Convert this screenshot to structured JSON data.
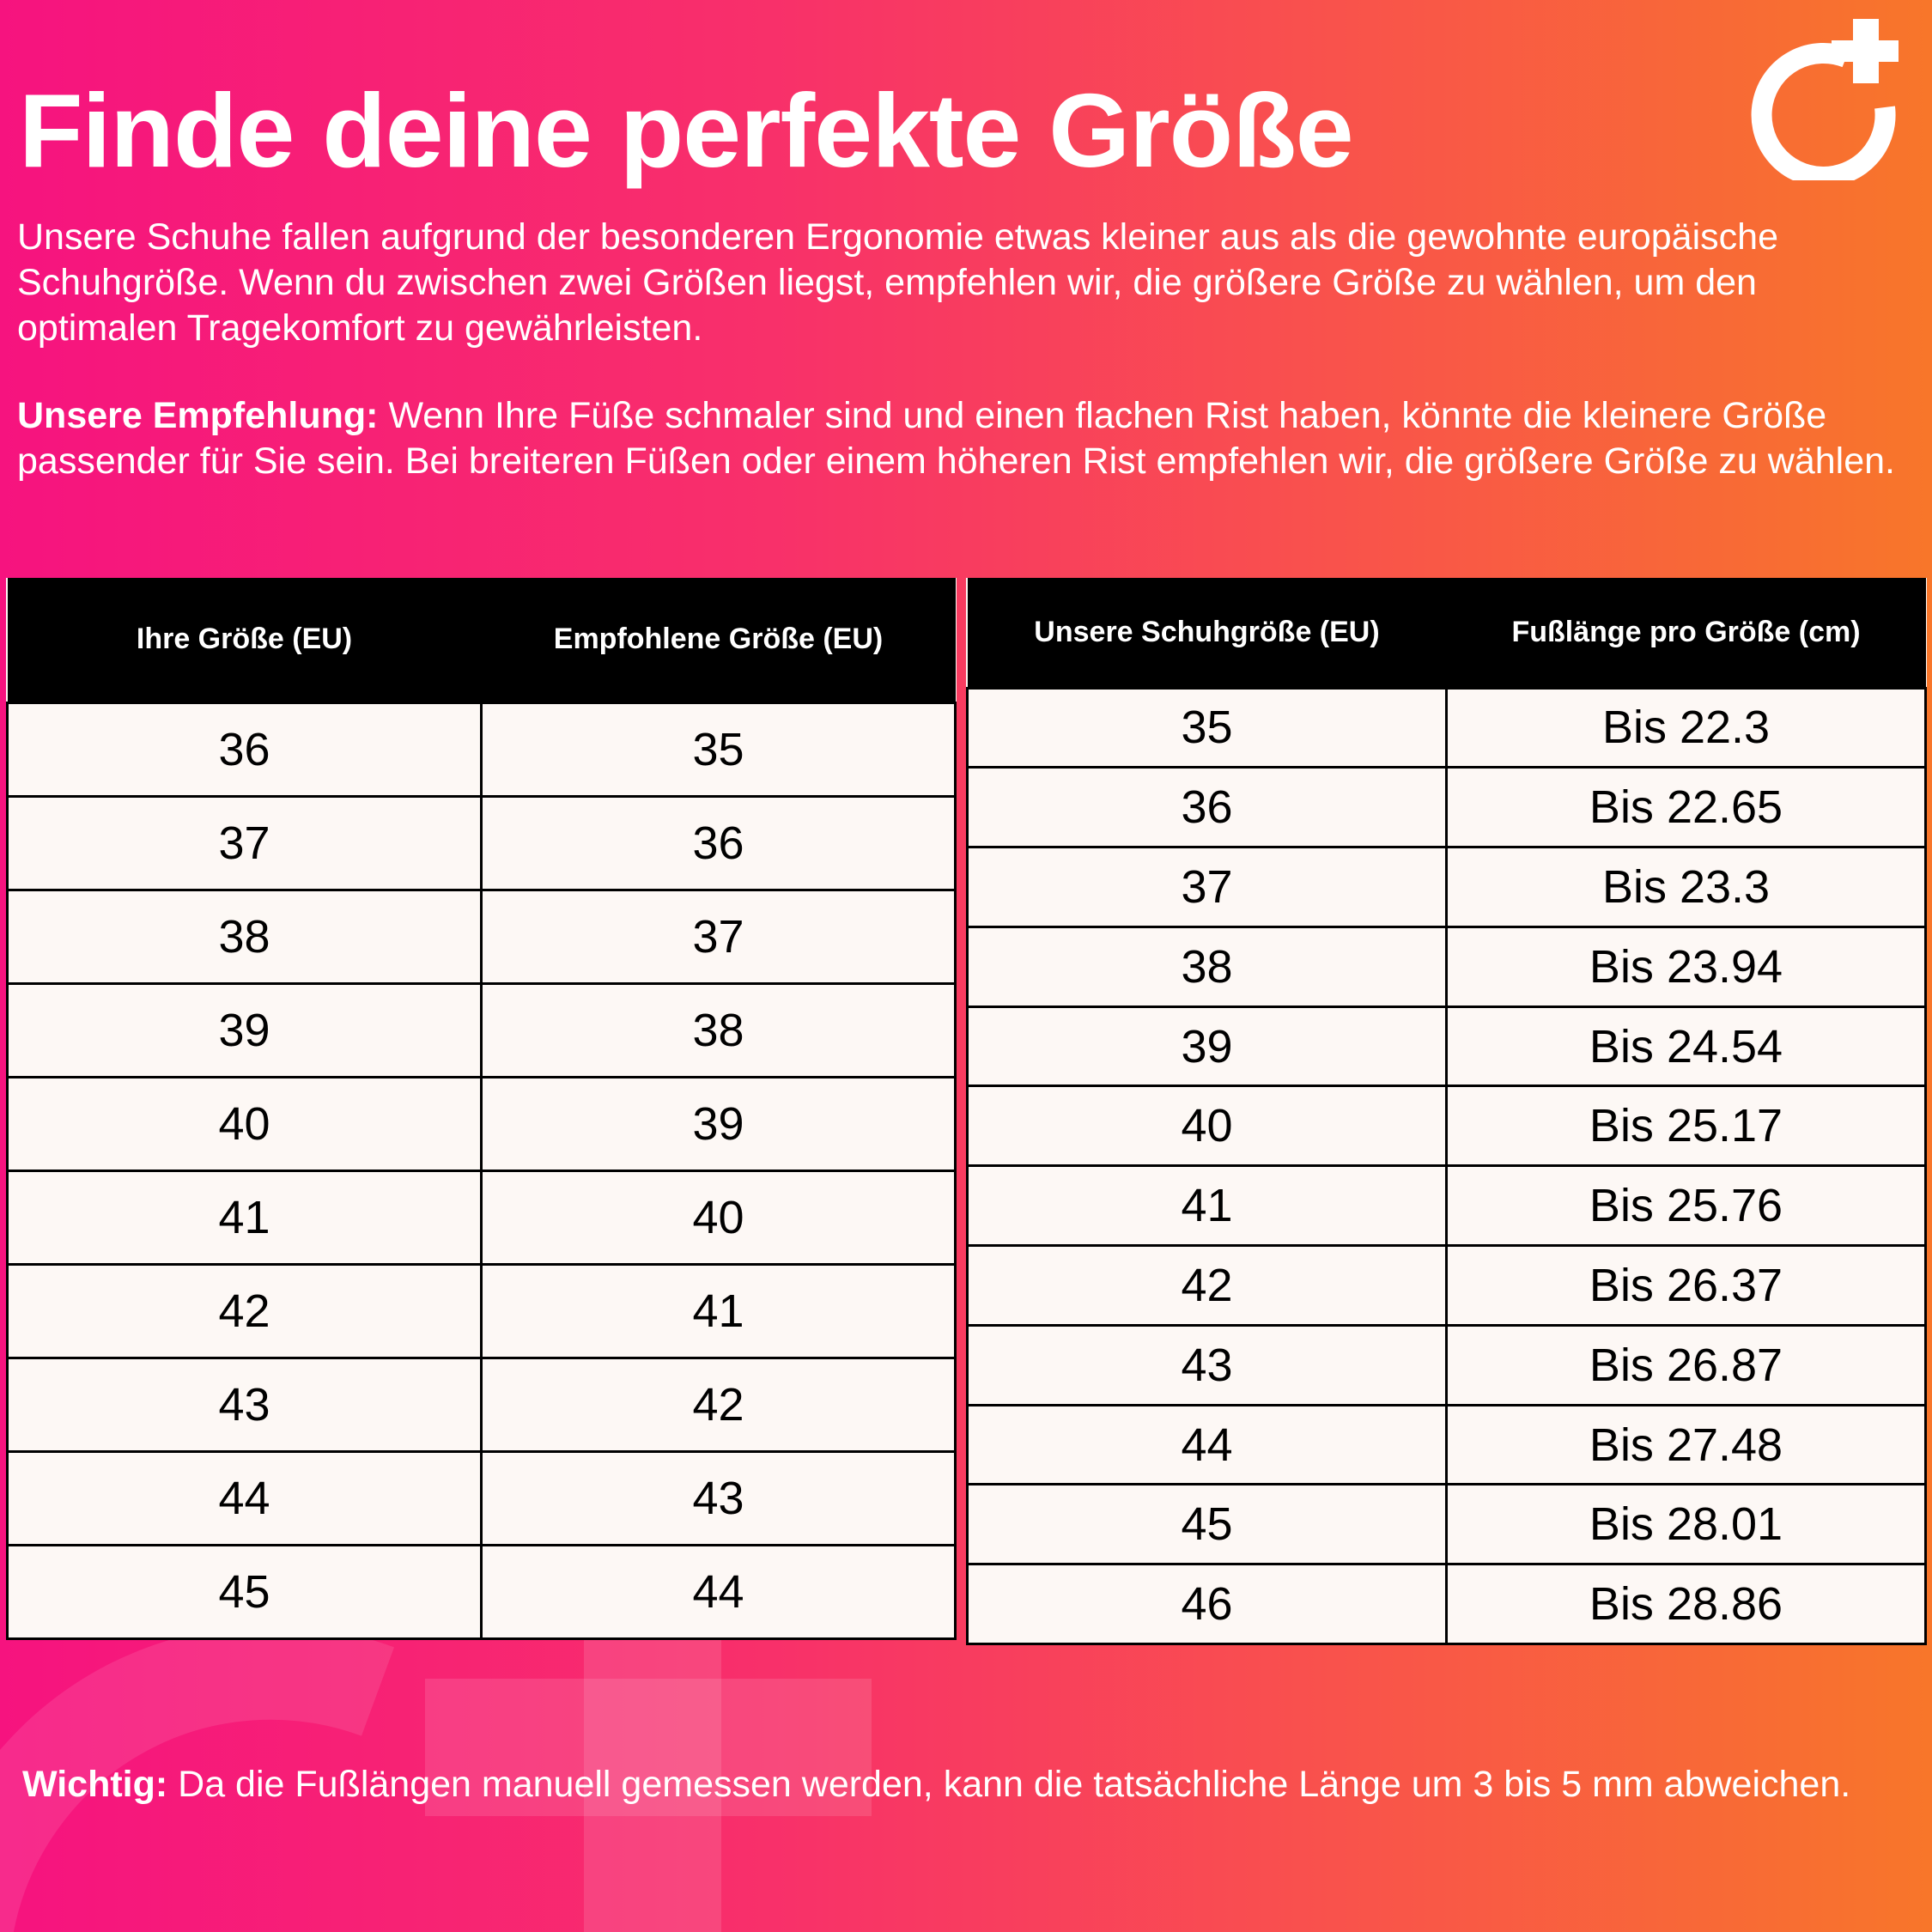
{
  "title": "Finde deine perfekte Größe",
  "intro": "Unsere Schuhe fallen aufgrund der besonderen Ergonomie etwas kleiner aus als die gewohnte europäische Schuhgröße. Wenn du zwischen zwei Größen liegst, empfehlen wir, die größere Größe zu wählen, um den optimalen Tragekomfort zu gewährleisten.",
  "recommendation": {
    "label": "Unsere Empfehlung:",
    "text": " Wenn Ihre Füße schmaler sind und einen flachen Rist haben, könnte die kleinere Größe passender für Sie sein. Bei breiteren Füßen oder einem höheren Rist empfehlen wir, die größere Größe zu wählen."
  },
  "note": {
    "label": "Wichtig:",
    "text": " Da die Fußlängen manuell gemessen werden, kann die tatsächliche Länge um 3 bis 5 mm abweichen."
  },
  "logo_icon": "circle-plus-logo",
  "colors": {
    "gradient_left": "#f6137f",
    "gradient_right": "#f8762a",
    "cell_bg": "#fdf8f5",
    "header_bg": "#000000"
  },
  "table1": {
    "headers": [
      "Ihre Größe (EU)",
      "Empfohlene Größe (EU)"
    ],
    "rows": [
      [
        "36",
        "35"
      ],
      [
        "37",
        "36"
      ],
      [
        "38",
        "37"
      ],
      [
        "39",
        "38"
      ],
      [
        "40",
        "39"
      ],
      [
        "41",
        "40"
      ],
      [
        "42",
        "41"
      ],
      [
        "43",
        "42"
      ],
      [
        "44",
        "43"
      ],
      [
        "45",
        "44"
      ]
    ]
  },
  "table2": {
    "headers": [
      "Unsere Schuhgröße (EU)",
      "Fußlänge pro Größe (cm)"
    ],
    "rows": [
      [
        "35",
        "Bis 22.3"
      ],
      [
        "36",
        "Bis 22.65"
      ],
      [
        "37",
        "Bis 23.3"
      ],
      [
        "38",
        "Bis 23.94"
      ],
      [
        "39",
        "Bis 24.54"
      ],
      [
        "40",
        "Bis 25.17"
      ],
      [
        "41",
        "Bis 25.76"
      ],
      [
        "42",
        "Bis 26.37"
      ],
      [
        "43",
        "Bis 26.87"
      ],
      [
        "44",
        "Bis 27.48"
      ],
      [
        "45",
        "Bis 28.01"
      ],
      [
        "46",
        "Bis 28.86"
      ]
    ]
  }
}
